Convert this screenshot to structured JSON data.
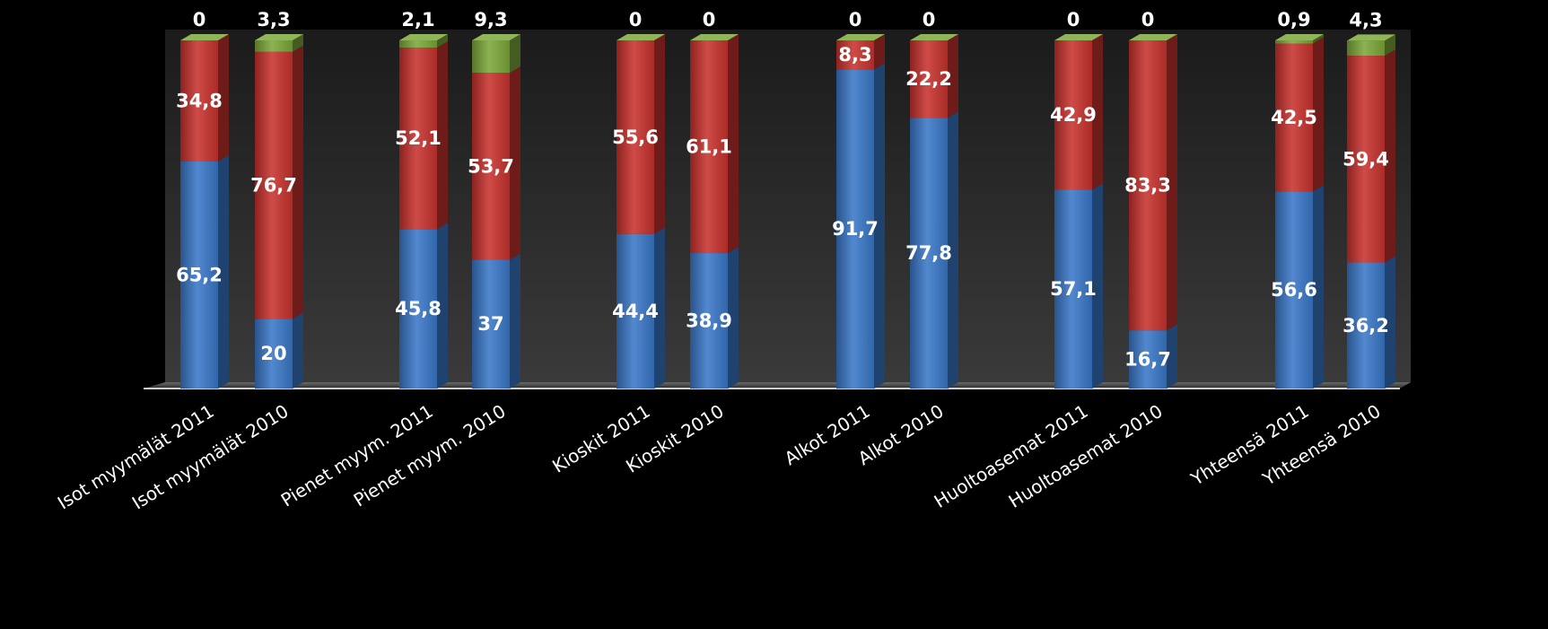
{
  "chart_data": {
    "type": "bar",
    "stacked": true,
    "three_d": true,
    "background": "#000000",
    "categories": [
      "Isot myymälät 2011",
      "Isot myymälät 2010",
      "Pienet myym. 2011",
      "Pienet myym. 2010",
      "Kioskit 2011",
      "Kioskit 2010",
      "Alkot 2011",
      "Alkot 2010",
      "Huoltoasemat 2011",
      "Huoltoasemat 2010",
      "Yhteensä 2011",
      "Yhteensä 2010"
    ],
    "series": [
      {
        "color": "#3a78c8",
        "values": [
          65.2,
          20,
          45.8,
          37,
          44.4,
          38.9,
          91.7,
          77.8,
          57.1,
          16.7,
          56.6,
          36.2
        ],
        "labels": [
          "65,2",
          "20",
          "45,8",
          "37",
          "44,4",
          "38,9",
          "91,7",
          "77,8",
          "57,1",
          "16,7",
          "56,6",
          "36,2"
        ]
      },
      {
        "color": "#c8322e",
        "values": [
          34.8,
          76.7,
          52.1,
          53.7,
          55.6,
          61.1,
          8.3,
          22.2,
          42.9,
          83.3,
          42.5,
          59.4
        ],
        "labels": [
          "34,8",
          "76,7",
          "52,1",
          "53,7",
          "55,6",
          "61,1",
          "8,3",
          "22,2",
          "42,9",
          "83,3",
          "42,5",
          "59,4"
        ]
      },
      {
        "color": "#7ca83a",
        "values": [
          0,
          3.3,
          2.1,
          9.3,
          0,
          0,
          0,
          0,
          0,
          0,
          0.9,
          4.3
        ],
        "labels": [
          "0",
          "3,3",
          "2,1",
          "9,3",
          "0",
          "0",
          "0",
          "0",
          "0",
          "0",
          "0,9",
          "4,3"
        ]
      }
    ],
    "ylim": [
      0,
      100
    ],
    "grid": false,
    "legend": "none"
  }
}
